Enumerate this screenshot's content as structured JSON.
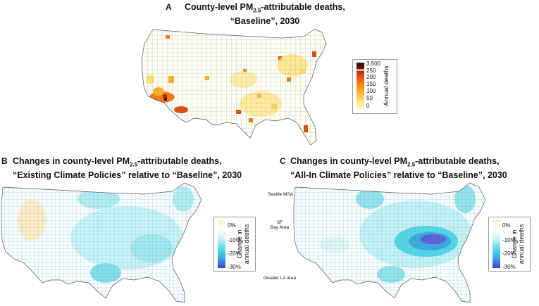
{
  "panels": {
    "a": {
      "letter": "A",
      "title_line1_pre": "County-level PM",
      "title_sub": "2.5",
      "title_line1_post": "-attributable deaths,",
      "title_line2": "“Baseline”, 2030",
      "legend": {
        "title": "Annual deaths",
        "ticks": [
          "3,500",
          "250",
          "200",
          "150",
          "100",
          "50",
          "0"
        ]
      }
    },
    "b": {
      "letter": "B",
      "title_line1_pre": "Changes in county-level PM",
      "title_sub": "2.5",
      "title_line1_post": "-attributable deaths,",
      "title_line2": "“Existing Climate Policies” relative to “Baseline”, 2030",
      "legend": {
        "title_line1": "Change in",
        "title_line2": "annual deaths",
        "ticks": [
          "0%",
          "-10%",
          "-20%",
          "-30%"
        ]
      }
    },
    "c": {
      "letter": "C",
      "title_line1_pre": "Changes in county-level PM",
      "title_sub": "2.5",
      "title_line1_post": "-attributable deaths,",
      "title_line2": "“All-In Climate Policies” relative to “Baseline”, 2030",
      "legend": {
        "title_line1": "Change in",
        "title_line2": "annual deaths",
        "ticks": [
          "0%",
          "-10%",
          "-20%",
          "-30%"
        ]
      },
      "annotations": {
        "seattle": "Seattle MSA",
        "sf_line1": "SF",
        "sf_line2": "Bay Area",
        "la": "Greater LA area"
      }
    }
  },
  "colors": {
    "deaths_scale": [
      "#fff8d0",
      "#ffe27a",
      "#fdb022",
      "#f47a12",
      "#e04b0a",
      "#b02a05",
      "#3a0a02"
    ],
    "change_scale": [
      "#fdf0c8",
      "#ffffff",
      "#bff3f8",
      "#4fd7e8",
      "#3ba6e0",
      "#3d3fd6"
    ],
    "county_border": "#8c8c8c"
  }
}
